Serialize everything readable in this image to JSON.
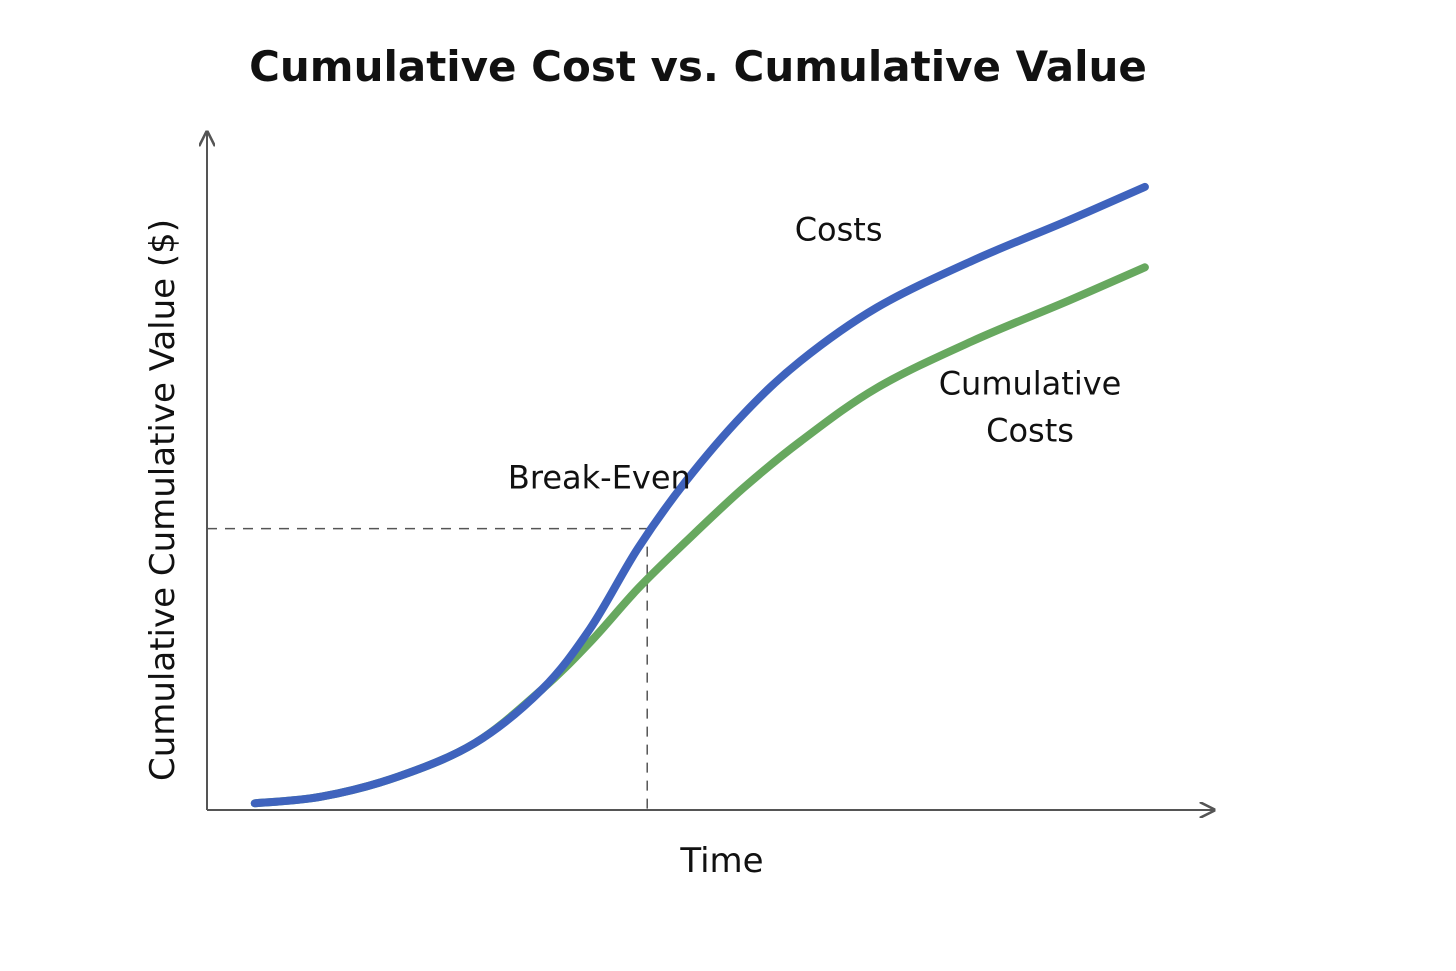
{
  "chart_data": {
    "type": "line",
    "title": "Cumulative Cost vs. Cumulative Value",
    "xlabel": "Time",
    "ylabel": "Cumulative Cumulative Value ($)",
    "ylim": [
      0,
      10
    ],
    "xlim": [
      0,
      10
    ],
    "grid": false,
    "legend": "none",
    "colors": {
      "blue": "#3f63bd",
      "green": "#67a85f",
      "axis": "#555555"
    },
    "series": [
      {
        "color": "#3f63bd",
        "points": [
          [
            0.5,
            0.1
          ],
          [
            1.2,
            0.2
          ],
          [
            2.0,
            0.5
          ],
          [
            2.8,
            1.0
          ],
          [
            3.5,
            1.8
          ],
          [
            4.0,
            2.7
          ],
          [
            4.5,
            3.9
          ],
          [
            5.0,
            4.9
          ],
          [
            5.6,
            5.9
          ],
          [
            6.2,
            6.7
          ],
          [
            7.0,
            7.5
          ],
          [
            8.0,
            8.2
          ],
          [
            9.0,
            8.8
          ],
          [
            9.8,
            9.3
          ]
        ]
      },
      {
        "color": "#67a85f",
        "points": [
          [
            0.5,
            0.1
          ],
          [
            1.2,
            0.2
          ],
          [
            2.0,
            0.5
          ],
          [
            2.8,
            1.0
          ],
          [
            3.5,
            1.8
          ],
          [
            4.0,
            2.5
          ],
          [
            4.5,
            3.3
          ],
          [
            5.0,
            4.0
          ],
          [
            5.6,
            4.8
          ],
          [
            6.2,
            5.5
          ],
          [
            7.0,
            6.3
          ],
          [
            8.0,
            7.0
          ],
          [
            9.0,
            7.6
          ],
          [
            9.8,
            8.1
          ]
        ]
      }
    ],
    "annotations": [
      {
        "text": "Costs",
        "x": 6.6,
        "y": 8.5
      },
      {
        "text": "Cumulative",
        "x": 8.6,
        "y": 6.2
      },
      {
        "text": "Costs",
        "x": 8.6,
        "y": 5.5
      },
      {
        "text": "Break-Even",
        "x": 4.1,
        "y": 4.8
      }
    ],
    "break_even": {
      "x": 4.6,
      "y": 4.2
    }
  }
}
